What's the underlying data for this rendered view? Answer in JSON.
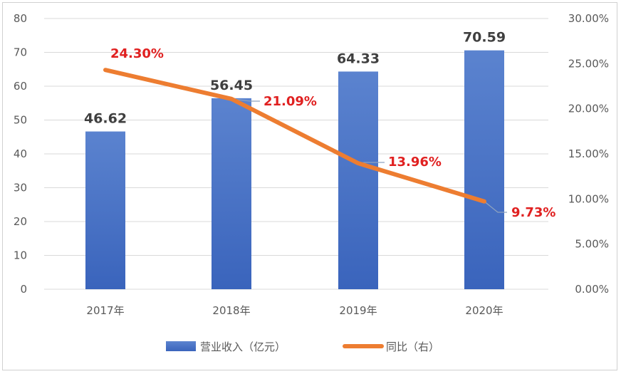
{
  "chart_data": {
    "type": "bar+line",
    "categories": [
      "2017年",
      "2018年",
      "2019年",
      "2020年"
    ],
    "series": [
      {
        "name": "营业收入（亿元）",
        "type": "bar",
        "axis": "left",
        "values": [
          46.62,
          56.45,
          64.33,
          70.59
        ],
        "labels": [
          "46.62",
          "56.45",
          "64.33",
          "70.59"
        ],
        "color": "#4472c4"
      },
      {
        "name": "同比（右）",
        "type": "line",
        "axis": "right",
        "values": [
          24.3,
          21.09,
          13.96,
          9.73
        ],
        "labels": [
          "24.30%",
          "21.09%",
          "13.96%",
          "9.73%"
        ],
        "color": "#ed7d31",
        "label_color": "#e02020"
      }
    ],
    "y_left": {
      "range": [
        0,
        80
      ],
      "ticks": [
        "0",
        "10",
        "20",
        "30",
        "40",
        "50",
        "60",
        "70",
        "80"
      ]
    },
    "y_right": {
      "range": [
        0,
        30
      ],
      "ticks": [
        "0.00%",
        "5.00%",
        "10.00%",
        "15.00%",
        "20.00%",
        "25.00%",
        "30.00%"
      ]
    },
    "grid": true,
    "legend_position": "bottom"
  }
}
